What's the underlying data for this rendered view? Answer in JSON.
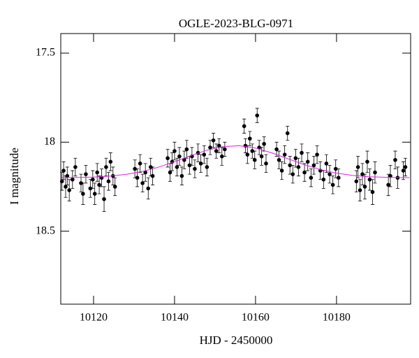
{
  "chart_data": {
    "type": "scatter",
    "title": "OGLE-2023-BLG-0971",
    "xlabel": "HJD - 2450000",
    "ylabel": "I magnitude",
    "xlim": [
      10111.9,
      10198.3
    ],
    "ylim": [
      17.39,
      18.91
    ],
    "y_inverted": true,
    "xticks": [
      10120,
      10140,
      10160,
      10180
    ],
    "yticks": [
      17.5,
      18,
      18.5
    ],
    "series": [
      {
        "color": "#000000",
        "x": [
          10112.2,
          10112.6,
          10113.1,
          10113.5,
          10114.0,
          10114.8,
          10115.5,
          10116.9,
          10117.4,
          10118.1,
          10119.2,
          10119.8,
          10120.3,
          10120.9,
          10121.4,
          10122.0,
          10122.6,
          10123.1,
          10123.7,
          10124.2,
          10124.8,
          10125.3,
          10130.2,
          10130.8,
          10131.5,
          10132.1,
          10132.8,
          10133.5,
          10134.1,
          10134.6,
          10138.3,
          10138.9,
          10139.4,
          10140.0,
          10140.6,
          10141.2,
          10141.8,
          10142.4,
          10143.0,
          10143.7,
          10144.3,
          10145.0,
          10145.8,
          10146.5,
          10147.3,
          10148.0,
          10148.8,
          10149.6,
          10150.3,
          10151.0,
          10151.7,
          10152.4,
          10157.2,
          10157.5,
          10158.0,
          10158.6,
          10159.2,
          10159.8,
          10160.4,
          10160.9,
          10161.5,
          10162.1,
          10162.6,
          10165.2,
          10165.8,
          10166.5,
          10167.2,
          10167.9,
          10168.5,
          10169.2,
          10169.9,
          10170.6,
          10171.4,
          10172.1,
          10172.9,
          10173.7,
          10174.4,
          10175.2,
          10176.0,
          10176.8,
          10177.5,
          10178.3,
          10179.1,
          10179.8,
          10180.5,
          10184.9,
          10185.3,
          10185.8,
          10186.4,
          10187.0,
          10187.6,
          10188.2,
          10188.9,
          10189.5,
          10192.8,
          10193.3,
          10194.5,
          10195.1,
          10196.5,
          10197.0
        ],
        "values": [
          18.22,
          18.16,
          18.25,
          18.19,
          18.27,
          18.21,
          18.14,
          18.23,
          18.29,
          18.18,
          18.26,
          18.21,
          18.29,
          18.17,
          18.24,
          18.2,
          18.32,
          18.14,
          18.22,
          18.11,
          18.19,
          18.25,
          18.15,
          18.2,
          18.12,
          18.23,
          18.17,
          18.26,
          18.14,
          18.19,
          18.09,
          18.17,
          18.11,
          18.05,
          18.14,
          18.08,
          18.19,
          18.1,
          18.04,
          18.13,
          18.08,
          18.15,
          18.06,
          18.12,
          18.07,
          18.14,
          18.03,
          17.99,
          18.05,
          18.02,
          18.08,
          18.04,
          17.91,
          18.02,
          18.07,
          17.98,
          18.05,
          18.1,
          17.85,
          18.03,
          18.08,
          18.01,
          18.12,
          18.04,
          18.1,
          18.16,
          18.07,
          17.95,
          18.13,
          18.18,
          18.09,
          18.14,
          18.06,
          18.17,
          18.11,
          18.2,
          18.13,
          18.07,
          18.16,
          18.21,
          18.12,
          18.18,
          18.24,
          18.15,
          18.2,
          18.22,
          18.14,
          18.27,
          18.18,
          18.25,
          18.11,
          18.21,
          18.28,
          18.17,
          18.24,
          18.19,
          18.1,
          18.2,
          18.16,
          18.14
        ],
        "errors": [
          0.05,
          0.05,
          0.06,
          0.05,
          0.06,
          0.05,
          0.05,
          0.05,
          0.06,
          0.05,
          0.05,
          0.05,
          0.06,
          0.05,
          0.05,
          0.05,
          0.07,
          0.05,
          0.05,
          0.05,
          0.05,
          0.05,
          0.05,
          0.05,
          0.05,
          0.05,
          0.05,
          0.06,
          0.05,
          0.05,
          0.05,
          0.05,
          0.05,
          0.05,
          0.05,
          0.05,
          0.05,
          0.05,
          0.05,
          0.05,
          0.05,
          0.05,
          0.05,
          0.05,
          0.05,
          0.05,
          0.04,
          0.04,
          0.04,
          0.04,
          0.05,
          0.04,
          0.04,
          0.04,
          0.05,
          0.04,
          0.04,
          0.05,
          0.04,
          0.04,
          0.05,
          0.04,
          0.05,
          0.04,
          0.05,
          0.05,
          0.05,
          0.04,
          0.05,
          0.05,
          0.05,
          0.05,
          0.05,
          0.05,
          0.05,
          0.05,
          0.05,
          0.05,
          0.05,
          0.05,
          0.05,
          0.05,
          0.05,
          0.05,
          0.05,
          0.06,
          0.06,
          0.06,
          0.06,
          0.07,
          0.06,
          0.06,
          0.07,
          0.06,
          0.06,
          0.06,
          0.05,
          0.06,
          0.05,
          0.05
        ]
      },
      {
        "color": "#e020e0",
        "kind": "line",
        "x": [
          10112,
          10116,
          10120,
          10124,
          10128,
          10132,
          10136,
          10140,
          10144,
          10148,
          10152,
          10156,
          10160,
          10164,
          10168,
          10172,
          10176,
          10180,
          10184,
          10188,
          10192,
          10196,
          10198
        ],
        "values": [
          18.199,
          18.198,
          18.196,
          18.191,
          18.181,
          18.165,
          18.141,
          18.11,
          18.076,
          18.045,
          18.025,
          18.02,
          18.033,
          18.06,
          18.093,
          18.126,
          18.154,
          18.174,
          18.187,
          18.194,
          18.197,
          18.199,
          18.199
        ]
      }
    ]
  }
}
